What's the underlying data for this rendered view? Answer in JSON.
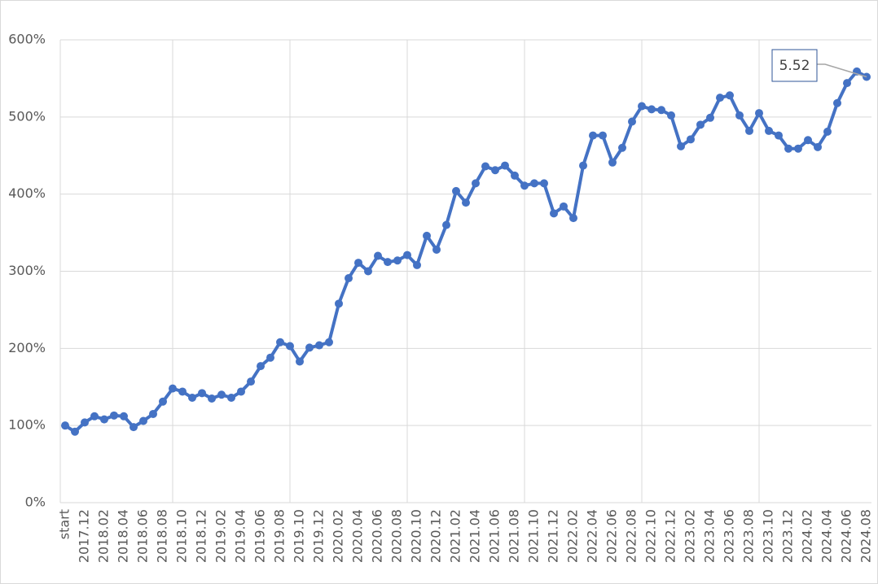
{
  "chart_data": {
    "type": "line",
    "categories": [
      "start",
      null,
      "2017.12",
      null,
      "2018.02",
      null,
      "2018.04",
      null,
      "2018.06",
      null,
      "2018.08",
      null,
      "2018.10",
      null,
      "2018.12",
      null,
      "2019.02",
      null,
      "2019.04",
      null,
      "2019.06",
      null,
      "2019.08",
      null,
      "2019.10",
      null,
      "2019.12",
      null,
      "2020.02",
      null,
      "2020.04",
      null,
      "2020.06",
      null,
      "2020.08",
      null,
      "2020.10",
      null,
      "2020.12",
      null,
      "2021.02",
      null,
      "2021.04",
      null,
      "2021.06",
      null,
      "2021.08",
      null,
      "2021.10",
      null,
      "2021.12",
      null,
      "2022.02",
      null,
      "2022.04",
      null,
      "2022.06",
      null,
      "2022.08",
      null,
      "2022.10",
      null,
      "2022.12",
      null,
      "2023.02",
      null,
      "2023.04",
      null,
      "2023.06",
      null,
      "2023.08",
      null,
      "2023.10",
      null,
      "2023.12",
      null,
      "2024.02",
      null,
      "2024.04",
      null,
      "2024.06",
      null,
      "2024.08"
    ],
    "values": [
      100,
      92,
      104,
      112,
      108,
      113,
      112,
      98,
      106,
      115,
      131,
      148,
      144,
      136,
      142,
      135,
      140,
      136,
      144,
      157,
      177,
      188,
      208,
      203,
      183,
      201,
      204,
      208,
      258,
      291,
      311,
      300,
      320,
      312,
      314,
      321,
      308,
      346,
      328,
      360,
      404,
      389,
      414,
      436,
      431,
      437,
      424,
      411,
      414,
      414,
      375,
      384,
      369,
      437,
      476,
      476,
      441,
      460,
      494,
      514,
      510,
      509,
      502,
      462,
      471,
      490,
      499,
      525,
      528,
      502,
      482,
      505,
      482,
      476,
      459,
      459,
      470,
      461,
      481,
      518,
      544,
      559,
      552
    ],
    "color": "#4472c4",
    "ylim": [
      0,
      600
    ],
    "yticks": [
      {
        "value": 0,
        "label": "0%"
      },
      {
        "value": 100,
        "label": "100%"
      },
      {
        "value": 200,
        "label": "200%"
      },
      {
        "value": 300,
        "label": "300%"
      },
      {
        "value": 400,
        "label": "400%"
      },
      {
        "value": 500,
        "label": "500%"
      },
      {
        "value": 600,
        "label": "600%"
      }
    ],
    "grid": true,
    "annotation": "5.52"
  }
}
